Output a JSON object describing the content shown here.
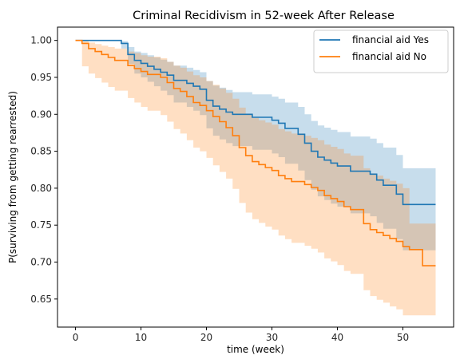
{
  "chart_data": {
    "type": "line",
    "title": "Criminal Recidivism in 52-week After Release",
    "xlabel": "time (week)",
    "ylabel": "P(surviving from getting rearrested)",
    "xlim": [
      -2.75,
      57.75
    ],
    "ylim": [
      0.612,
      1.018
    ],
    "xticks": [
      0,
      10,
      20,
      30,
      40,
      50
    ],
    "yticks": [
      0.65,
      0.7,
      0.75,
      0.8,
      0.85,
      0.9,
      0.95,
      1.0
    ],
    "ytick_labels": [
      "0.65",
      "0.70",
      "0.75",
      "0.80",
      "0.85",
      "0.90",
      "0.95",
      "1.00"
    ],
    "legend_position": "upper right",
    "step": "post",
    "series": [
      {
        "name": "financial aid Yes",
        "color": "#1f77b4",
        "x": [
          0,
          7,
          8,
          9,
          10,
          11,
          12,
          13,
          14,
          15,
          17,
          18,
          19,
          20,
          21,
          22,
          23,
          24,
          25,
          26,
          27,
          30,
          31,
          32,
          34,
          35,
          36,
          37,
          38,
          39,
          40,
          42,
          43,
          45,
          46,
          47,
          49,
          50,
          52,
          55
        ],
        "y": [
          1.0,
          0.996,
          0.981,
          0.973,
          0.969,
          0.965,
          0.961,
          0.957,
          0.953,
          0.946,
          0.942,
          0.938,
          0.934,
          0.919,
          0.911,
          0.907,
          0.903,
          0.9,
          0.9,
          0.9,
          0.896,
          0.892,
          0.888,
          0.881,
          0.873,
          0.861,
          0.85,
          0.842,
          0.838,
          0.834,
          0.83,
          0.823,
          0.823,
          0.819,
          0.811,
          0.804,
          0.792,
          0.778,
          0.778,
          0.778
        ],
        "ci_lower": [
          1.0,
          0.989,
          0.968,
          0.955,
          0.95,
          0.944,
          0.938,
          0.932,
          0.926,
          0.916,
          0.91,
          0.905,
          0.899,
          0.881,
          0.871,
          0.866,
          0.861,
          0.857,
          0.857,
          0.857,
          0.852,
          0.847,
          0.842,
          0.833,
          0.824,
          0.811,
          0.798,
          0.789,
          0.784,
          0.779,
          0.775,
          0.766,
          0.766,
          0.762,
          0.753,
          0.745,
          0.731,
          0.716,
          0.716,
          0.716
        ],
        "ci_upper": [
          1.0,
          0.999,
          0.991,
          0.985,
          0.983,
          0.98,
          0.977,
          0.974,
          0.971,
          0.966,
          0.963,
          0.96,
          0.957,
          0.945,
          0.939,
          0.936,
          0.933,
          0.93,
          0.93,
          0.93,
          0.927,
          0.924,
          0.921,
          0.916,
          0.91,
          0.9,
          0.891,
          0.885,
          0.882,
          0.879,
          0.876,
          0.87,
          0.87,
          0.867,
          0.861,
          0.855,
          0.845,
          0.827,
          0.827,
          0.827
        ]
      },
      {
        "name": "financial aid No",
        "color": "#ff7f0e",
        "x": [
          0,
          1,
          2,
          3,
          4,
          5,
          6,
          8,
          9,
          10,
          11,
          13,
          14,
          15,
          16,
          17,
          18,
          19,
          20,
          21,
          22,
          23,
          24,
          25,
          26,
          27,
          28,
          29,
          30,
          31,
          32,
          33,
          35,
          36,
          37,
          38,
          39,
          40,
          41,
          42,
          44,
          45,
          46,
          47,
          48,
          49,
          50,
          51,
          53,
          55
        ],
        "y": [
          1.0,
          0.996,
          0.989,
          0.985,
          0.981,
          0.977,
          0.973,
          0.966,
          0.962,
          0.958,
          0.954,
          0.95,
          0.943,
          0.935,
          0.931,
          0.924,
          0.916,
          0.912,
          0.905,
          0.897,
          0.89,
          0.882,
          0.871,
          0.855,
          0.844,
          0.836,
          0.832,
          0.828,
          0.824,
          0.817,
          0.813,
          0.809,
          0.805,
          0.801,
          0.797,
          0.79,
          0.786,
          0.782,
          0.775,
          0.771,
          0.752,
          0.744,
          0.74,
          0.736,
          0.732,
          0.728,
          0.721,
          0.717,
          0.695,
          0.695
        ],
        "ci_lower": [
          1.0,
          0.965,
          0.955,
          0.949,
          0.943,
          0.937,
          0.932,
          0.922,
          0.916,
          0.91,
          0.905,
          0.899,
          0.89,
          0.88,
          0.874,
          0.865,
          0.855,
          0.85,
          0.841,
          0.831,
          0.822,
          0.813,
          0.799,
          0.78,
          0.767,
          0.758,
          0.753,
          0.748,
          0.744,
          0.736,
          0.731,
          0.726,
          0.722,
          0.718,
          0.713,
          0.705,
          0.701,
          0.696,
          0.688,
          0.684,
          0.662,
          0.654,
          0.649,
          0.645,
          0.64,
          0.636,
          0.628,
          0.628,
          0.628,
          0.628
        ],
        "ci_upper": [
          1.0,
          0.999,
          0.997,
          0.995,
          0.993,
          0.991,
          0.989,
          0.985,
          0.983,
          0.98,
          0.978,
          0.976,
          0.971,
          0.966,
          0.963,
          0.958,
          0.953,
          0.95,
          0.945,
          0.94,
          0.935,
          0.929,
          0.921,
          0.909,
          0.901,
          0.895,
          0.892,
          0.889,
          0.886,
          0.88,
          0.877,
          0.874,
          0.871,
          0.868,
          0.865,
          0.859,
          0.856,
          0.853,
          0.847,
          0.844,
          0.827,
          0.82,
          0.817,
          0.813,
          0.81,
          0.806,
          0.8,
          0.752,
          0.752,
          0.752
        ]
      }
    ]
  }
}
